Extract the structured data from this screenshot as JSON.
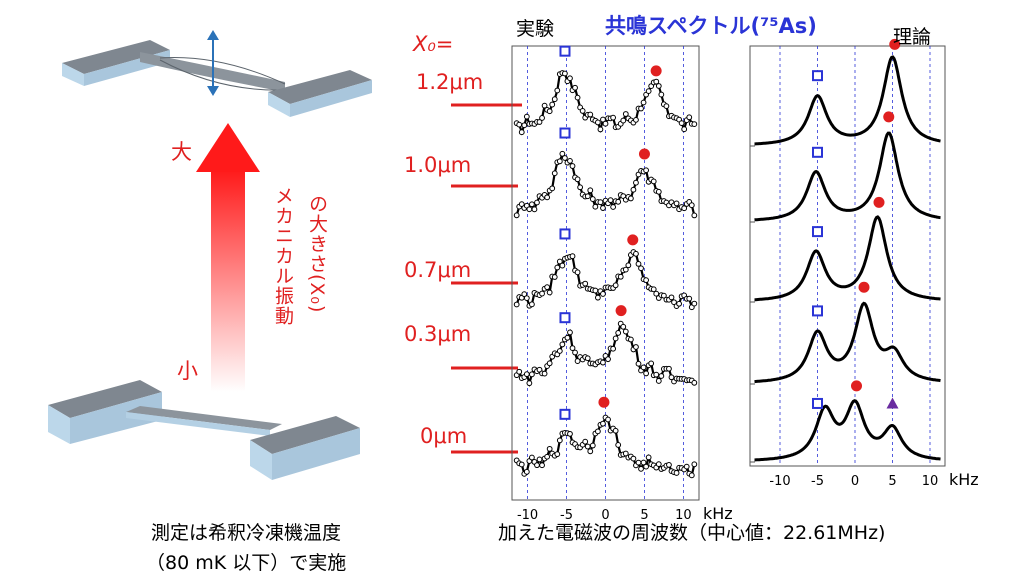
{
  "title": "共鳴スペクトル(⁷⁵As)",
  "panels": {
    "experiment_label": "実験",
    "theory_label": "理論"
  },
  "amplitude": {
    "header": "X₀=",
    "labels": [
      "1.2μm",
      "1.0μm",
      "0.7μm",
      "0.3μm",
      "0μm"
    ],
    "arrow_top": "大",
    "arrow_bottom": "小",
    "arrow_caption_line1": "メカニカル振動",
    "arrow_caption_line2": "の大きさ(X₀)"
  },
  "caption_left": {
    "line1": "測定は希釈冷凍機温度",
    "line2": "（80 mK 以下）で実施"
  },
  "caption_bottom": "加えた電磁波の周波数（中心値：22.61MHz)",
  "colors": {
    "red": "#e02020",
    "blue": "#2a34d6",
    "purple": "#6a2ca0",
    "device_top": "#7f8790",
    "device_side": "#bcd7ea"
  },
  "icons": {
    "square_marker": "open-square",
    "dot_marker": "filled-circle",
    "triangle_marker": "filled-triangle",
    "arrow": "gradient-up-arrow"
  },
  "chart_data": [
    {
      "type": "line",
      "panel": "実験",
      "x_axis": {
        "ticks": [
          -10,
          -5,
          0,
          5,
          10
        ],
        "unit": "kHz",
        "xlim": [
          -12,
          12
        ]
      },
      "grid_x": [
        -10,
        -5,
        0,
        5,
        10
      ],
      "series": [
        {
          "name": "1.2μm",
          "peaks": [
            {
              "x": -5.2,
              "h": 1.0
            },
            {
              "x": 6.2,
              "h": 0.75
            }
          ],
          "square_x": -5.2,
          "dot_x": 6.5
        },
        {
          "name": "1.0μm",
          "peaks": [
            {
              "x": -5.2,
              "h": 1.0
            },
            {
              "x": 5.0,
              "h": 0.7
            }
          ],
          "square_x": -5.2,
          "dot_x": 5.0
        },
        {
          "name": "0.7μm",
          "peaks": [
            {
              "x": -5.0,
              "h": 0.85
            },
            {
              "x": 3.5,
              "h": 0.8
            }
          ],
          "square_x": -5.2,
          "dot_x": 3.5
        },
        {
          "name": "0.3μm",
          "peaks": [
            {
              "x": -5.0,
              "h": 0.7
            },
            {
              "x": 2.2,
              "h": 0.9
            }
          ],
          "square_x": -5.2,
          "dot_x": 2.0
        },
        {
          "name": "0μm",
          "peaks": [
            {
              "x": -5.0,
              "h": 0.55
            },
            {
              "x": 0.0,
              "h": 0.85
            }
          ],
          "square_x": -5.2,
          "dot_x": -0.2
        }
      ]
    },
    {
      "type": "line",
      "panel": "理論",
      "x_axis": {
        "ticks": [
          -10,
          -5,
          0,
          5,
          10
        ],
        "unit": "kHz",
        "xlim": [
          -14,
          12
        ]
      },
      "grid_x": [
        -10,
        -5,
        0,
        5,
        10
      ],
      "series": [
        {
          "name": "1.2μm",
          "peaks": [
            {
              "x": -5.0,
              "h": 0.55
            },
            {
              "x": 5.0,
              "h": 1.0
            }
          ],
          "square_x": -5.0,
          "dot_x": 5.3
        },
        {
          "name": "1.0μm",
          "peaks": [
            {
              "x": -5.2,
              "h": 0.55
            },
            {
              "x": 4.5,
              "h": 1.0
            }
          ],
          "square_x": -5.0,
          "dot_x": 4.5
        },
        {
          "name": "0.7μm",
          "peaks": [
            {
              "x": -5.2,
              "h": 0.55
            },
            {
              "x": 3.0,
              "h": 0.95
            }
          ],
          "square_x": -5.0,
          "dot_x": 3.2
        },
        {
          "name": "0.3μm",
          "peaks": [
            {
              "x": -5.0,
              "h": 0.55
            },
            {
              "x": 1.2,
              "h": 0.85
            },
            {
              "x": 5.2,
              "h": 0.3
            }
          ],
          "square_x": -5.0,
          "dot_x": 1.2
        },
        {
          "name": "0μm",
          "peaks": [
            {
              "x": -4.0,
              "h": 0.55
            },
            {
              "x": 0.0,
              "h": 0.6
            },
            {
              "x": 5.0,
              "h": 0.35
            }
          ],
          "square_x": -5.0,
          "dot_x": 0.2,
          "triangle_x": 5.0
        }
      ]
    }
  ]
}
